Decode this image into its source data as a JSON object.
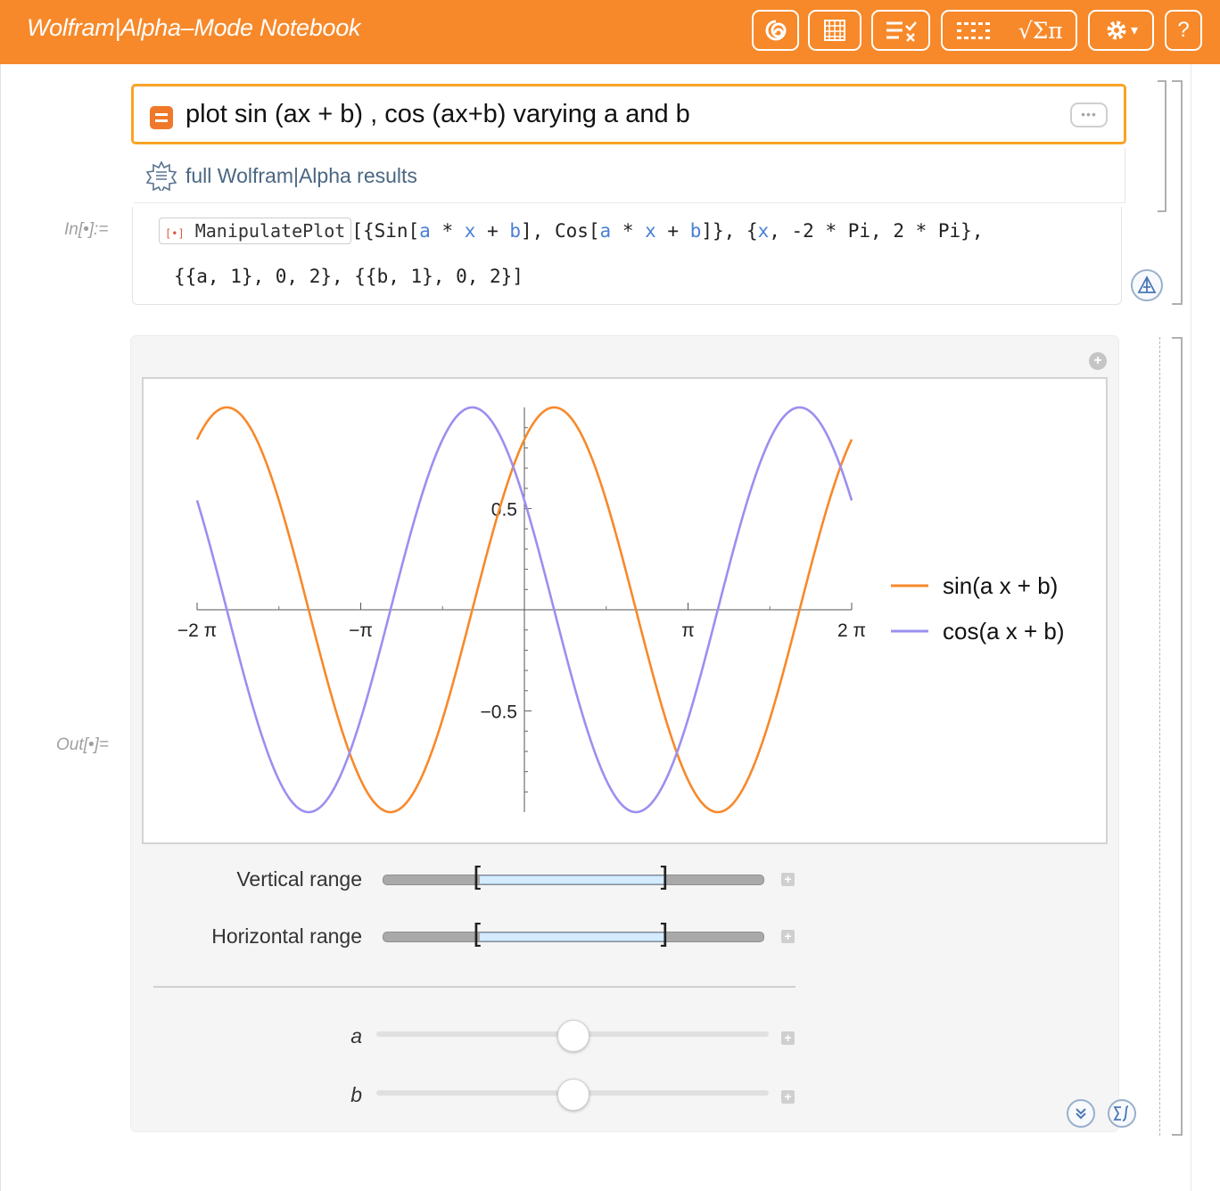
{
  "window": {
    "title": "Wolfram|Alpha–Mode Notebook"
  },
  "toolbar": {
    "spiral_icon": "wolfram-spiral-icon",
    "grid_icon": "cell-grid-icon",
    "list_icon": "list-check-icon",
    "palette_symbols": "√Σπ",
    "gear_caret": "▾",
    "help_label": "?"
  },
  "query": {
    "text": "plot sin (ax + b) , cos (ax+b) varying a and b",
    "more_label": "•••"
  },
  "wa_link": {
    "label": "full Wolfram|Alpha results"
  },
  "input": {
    "label": "In[•]:=",
    "line2": "{{a, 1}, 0, 2}, {{b, 1}, 0, 2}]"
  },
  "output": {
    "label": "Out[•]="
  },
  "chart_data": {
    "type": "line",
    "title": "",
    "xlabel": "",
    "ylabel": "",
    "xlim": [
      -6.2832,
      6.2832
    ],
    "ylim": [
      -1,
      1
    ],
    "xticks": [
      "−2 π",
      "−π",
      "π",
      "2 π"
    ],
    "yticks": [
      "0.5",
      "−0.5"
    ],
    "a": 1,
    "b": 1,
    "series": [
      {
        "name": "sin(a x + b)",
        "function": "sin(a*x+b)",
        "color": "#f7892a"
      },
      {
        "name": "cos(a x + b)",
        "function": "cos(a*x+b)",
        "color": "#9b8ff0"
      }
    ],
    "legend": "right"
  },
  "controls": {
    "vertical_range_label": "Vertical range",
    "horizontal_range_label": "Horizontal range",
    "a_label": "a",
    "b_label": "b",
    "a_value": 1,
    "b_value": 1,
    "a_range": [
      0,
      2
    ],
    "b_range": [
      0,
      2
    ],
    "plus_label": "+"
  }
}
